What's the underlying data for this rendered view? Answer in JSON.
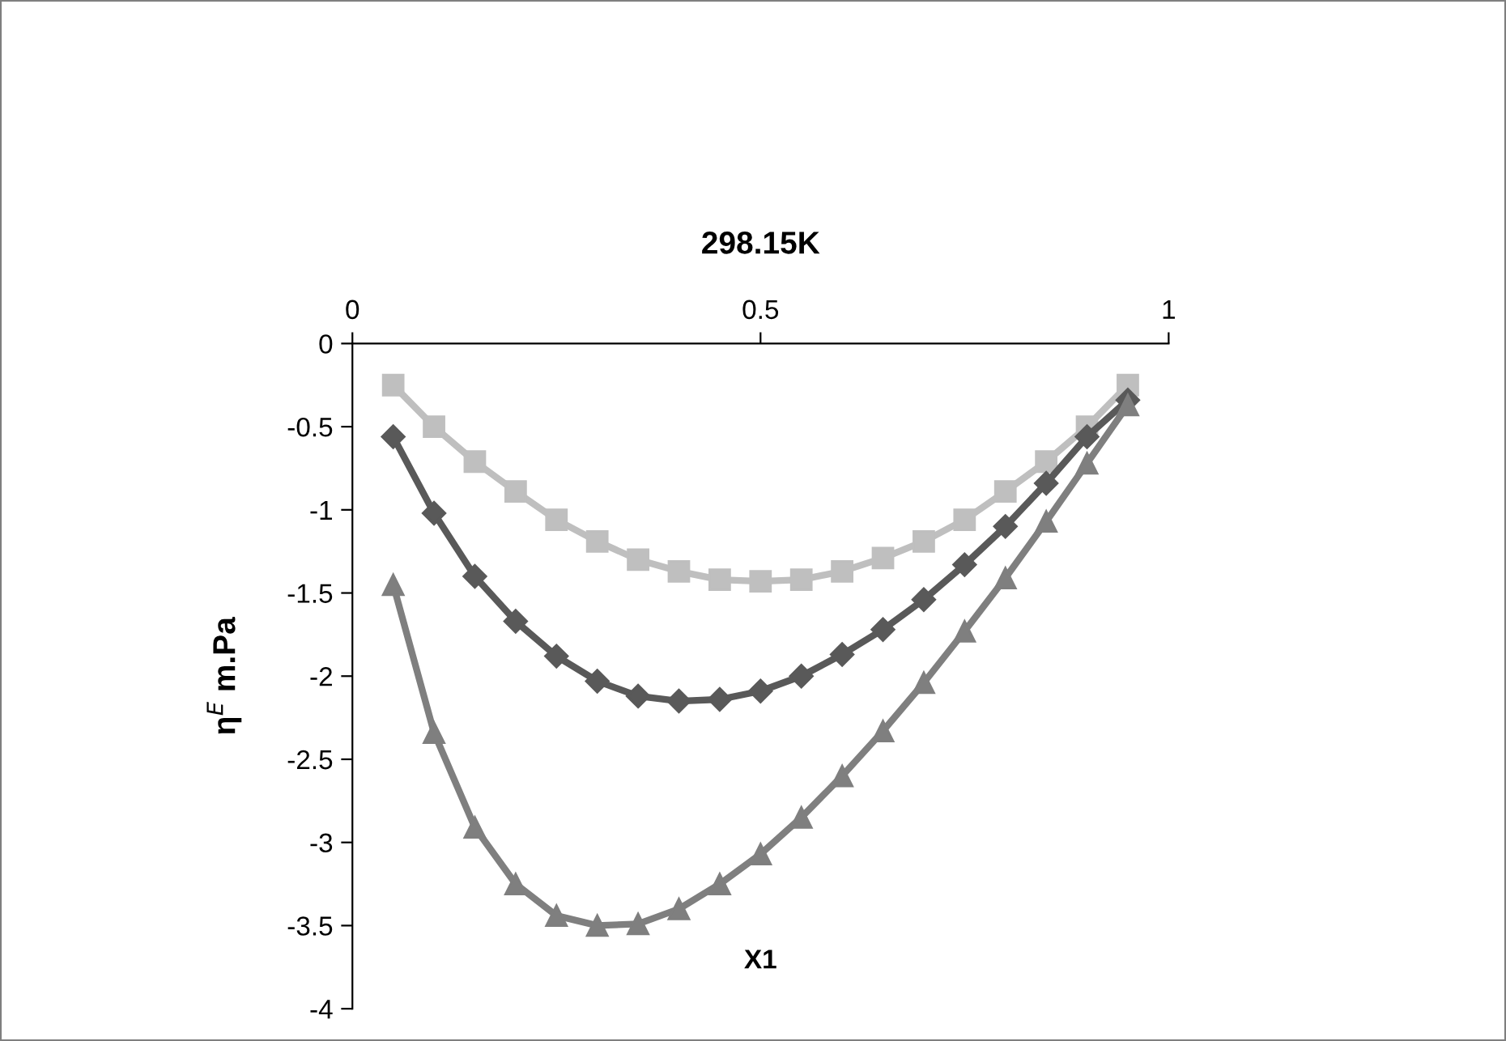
{
  "chart_data": {
    "type": "line",
    "title": "298.15K",
    "xlabel": "X1",
    "ylabel": "η$^{E}$ m.Pa",
    "xlim": [
      0,
      1
    ],
    "xticks": [
      0,
      0.5,
      1
    ],
    "ylim": [
      -4,
      0
    ],
    "yticks": [
      -4,
      -3.5,
      -3,
      -2.5,
      -2,
      -1.5,
      -1,
      -0.5,
      0
    ],
    "grid": false,
    "x": [
      0.05,
      0.1,
      0.15,
      0.2,
      0.25,
      0.3,
      0.35,
      0.4,
      0.45,
      0.5,
      0.55,
      0.6,
      0.65,
      0.7,
      0.75,
      0.8,
      0.85,
      0.9,
      0.95
    ],
    "series": [
      {
        "color": "#bfbfbf",
        "marker": "square",
        "values": [
          -0.25,
          -0.5,
          -0.71,
          -0.89,
          -1.06,
          -1.19,
          -1.3,
          -1.37,
          -1.42,
          -1.43,
          -1.42,
          -1.37,
          -1.29,
          -1.19,
          -1.06,
          -0.89,
          -0.71,
          -0.5,
          -0.25
        ]
      },
      {
        "color": "#595959",
        "marker": "diamond",
        "values": [
          -0.56,
          -1.02,
          -1.4,
          -1.67,
          -1.88,
          -2.03,
          -2.12,
          -2.15,
          -2.14,
          -2.09,
          -2.0,
          -1.87,
          -1.72,
          -1.54,
          -1.33,
          -1.1,
          -0.84,
          -0.56,
          -0.34
        ]
      },
      {
        "color": "#7f7f7f",
        "marker": "triangle",
        "values": [
          -1.45,
          -2.34,
          -2.91,
          -3.25,
          -3.44,
          -3.5,
          -3.49,
          -3.4,
          -3.25,
          -3.07,
          -2.85,
          -2.6,
          -2.33,
          -2.04,
          -1.73,
          -1.41,
          -1.07,
          -0.72,
          -0.37
        ]
      }
    ]
  }
}
